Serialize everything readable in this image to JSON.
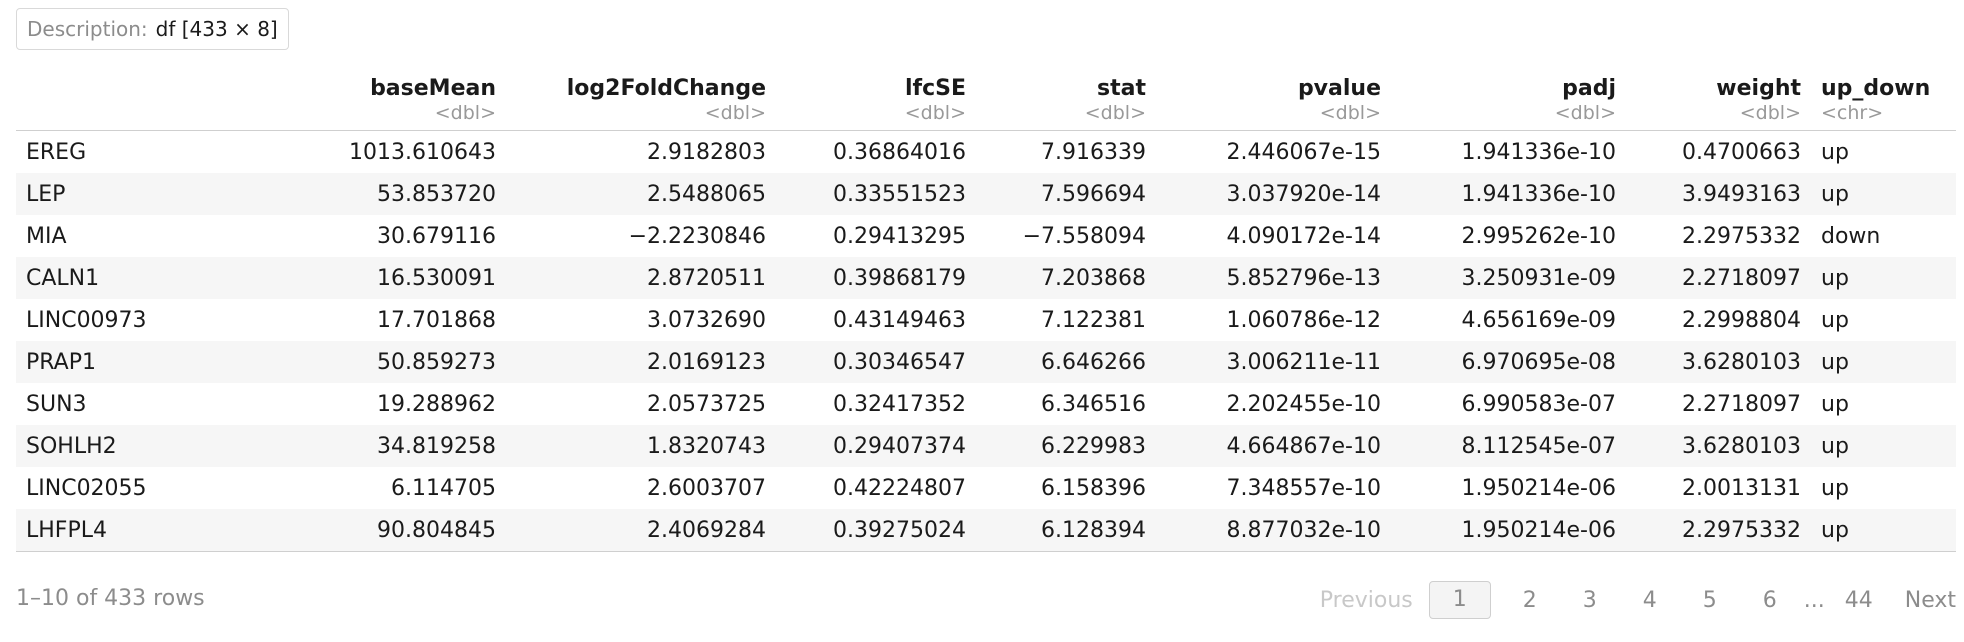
{
  "description": {
    "label": "Description:",
    "value": "df [433 × 8]"
  },
  "table": {
    "columns": [
      {
        "name": "",
        "type": ""
      },
      {
        "name": "baseMean",
        "type": "<dbl>"
      },
      {
        "name": "log2FoldChange",
        "type": "<dbl>"
      },
      {
        "name": "lfcSE",
        "type": "<dbl>"
      },
      {
        "name": "stat",
        "type": "<dbl>"
      },
      {
        "name": "pvalue",
        "type": "<dbl>"
      },
      {
        "name": "padj",
        "type": "<dbl>"
      },
      {
        "name": "weight",
        "type": "<dbl>"
      },
      {
        "name": "up_down",
        "type": "<chr>"
      }
    ],
    "rows": [
      [
        "EREG",
        "1013.610643",
        "2.9182803",
        "0.36864016",
        "7.916339",
        "2.446067e-15",
        "1.941336e-10",
        "0.4700663",
        "up"
      ],
      [
        "LEP",
        "53.853720",
        "2.5488065",
        "0.33551523",
        "7.596694",
        "3.037920e-14",
        "1.941336e-10",
        "3.9493163",
        "up"
      ],
      [
        "MIA",
        "30.679116",
        "−2.2230846",
        "0.29413295",
        "−7.558094",
        "4.090172e-14",
        "2.995262e-10",
        "2.2975332",
        "down"
      ],
      [
        "CALN1",
        "16.530091",
        "2.8720511",
        "0.39868179",
        "7.203868",
        "5.852796e-13",
        "3.250931e-09",
        "2.2718097",
        "up"
      ],
      [
        "LINC00973",
        "17.701868",
        "3.0732690",
        "0.43149463",
        "7.122381",
        "1.060786e-12",
        "4.656169e-09",
        "2.2998804",
        "up"
      ],
      [
        "PRAP1",
        "50.859273",
        "2.0169123",
        "0.30346547",
        "6.646266",
        "3.006211e-11",
        "6.970695e-08",
        "3.6280103",
        "up"
      ],
      [
        "SUN3",
        "19.288962",
        "2.0573725",
        "0.32417352",
        "6.346516",
        "2.202455e-10",
        "6.990583e-07",
        "2.2718097",
        "up"
      ],
      [
        "SOHLH2",
        "34.819258",
        "1.8320743",
        "0.29407374",
        "6.229983",
        "4.664867e-10",
        "8.112545e-07",
        "3.6280103",
        "up"
      ],
      [
        "LINC02055",
        "6.114705",
        "2.6003707",
        "0.42224807",
        "6.158396",
        "7.348557e-10",
        "1.950214e-06",
        "2.0013131",
        "up"
      ],
      [
        "LHFPL4",
        "90.804845",
        "2.4069284",
        "0.39275024",
        "6.128394",
        "8.877032e-10",
        "1.950214e-06",
        "2.2975332",
        "up"
      ]
    ]
  },
  "footer": {
    "row_count": "1–10 of 433 rows",
    "previous": "Previous",
    "pages": [
      "1",
      "2",
      "3",
      "4",
      "5",
      "6"
    ],
    "ellipsis": "...",
    "last_page": "44",
    "next": "Next",
    "current_page": "1"
  }
}
